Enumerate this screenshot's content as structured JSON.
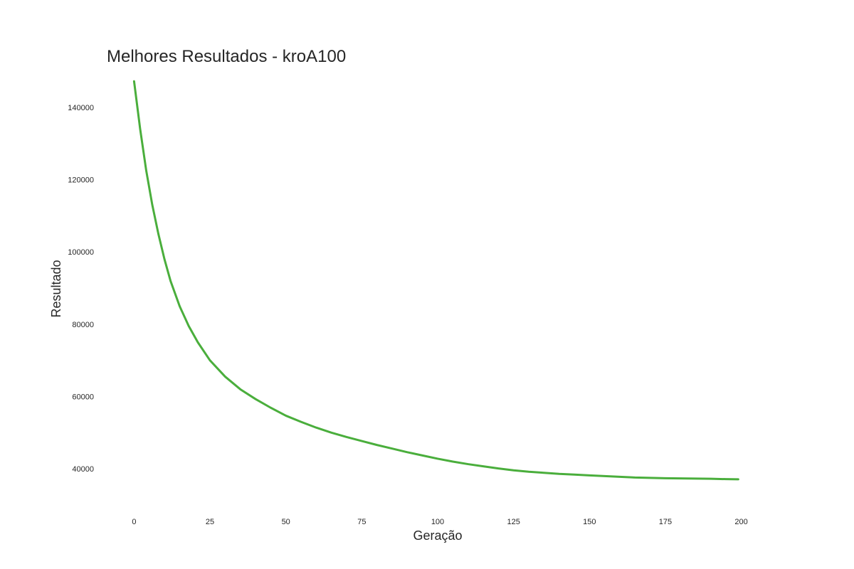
{
  "chart_data": {
    "type": "line",
    "title": "Melhores Resultados - kroA100",
    "xlabel": "Geração",
    "ylabel": "Resultado",
    "xlim": [
      -9,
      209
    ],
    "ylim": [
      30000,
      150000
    ],
    "xticks": [
      0,
      25,
      50,
      75,
      100,
      125,
      150,
      175,
      200
    ],
    "yticks": [
      40000,
      60000,
      80000,
      100000,
      120000,
      140000
    ],
    "grid": false,
    "color": "#4aae3c",
    "series": [
      {
        "x": [
          0,
          2,
          4,
          6,
          8,
          10,
          12,
          15,
          18,
          21,
          25,
          30,
          35,
          40,
          45,
          50,
          55,
          60,
          65,
          70,
          75,
          80,
          85,
          90,
          95,
          100,
          105,
          110,
          115,
          120,
          125,
          130,
          135,
          140,
          145,
          150,
          155,
          160,
          165,
          170,
          175,
          180,
          185,
          190,
          195,
          199
        ],
        "y": [
          147200,
          134000,
          122500,
          113000,
          105000,
          98000,
          92000,
          85000,
          79500,
          75000,
          70000,
          65500,
          62000,
          59300,
          56900,
          54700,
          53000,
          51400,
          50000,
          48800,
          47700,
          46600,
          45600,
          44600,
          43700,
          42800,
          42000,
          41300,
          40700,
          40100,
          39600,
          39200,
          38900,
          38600,
          38400,
          38200,
          38000,
          37800,
          37600,
          37500,
          37400,
          37350,
          37300,
          37250,
          37150,
          37100
        ]
      }
    ]
  }
}
